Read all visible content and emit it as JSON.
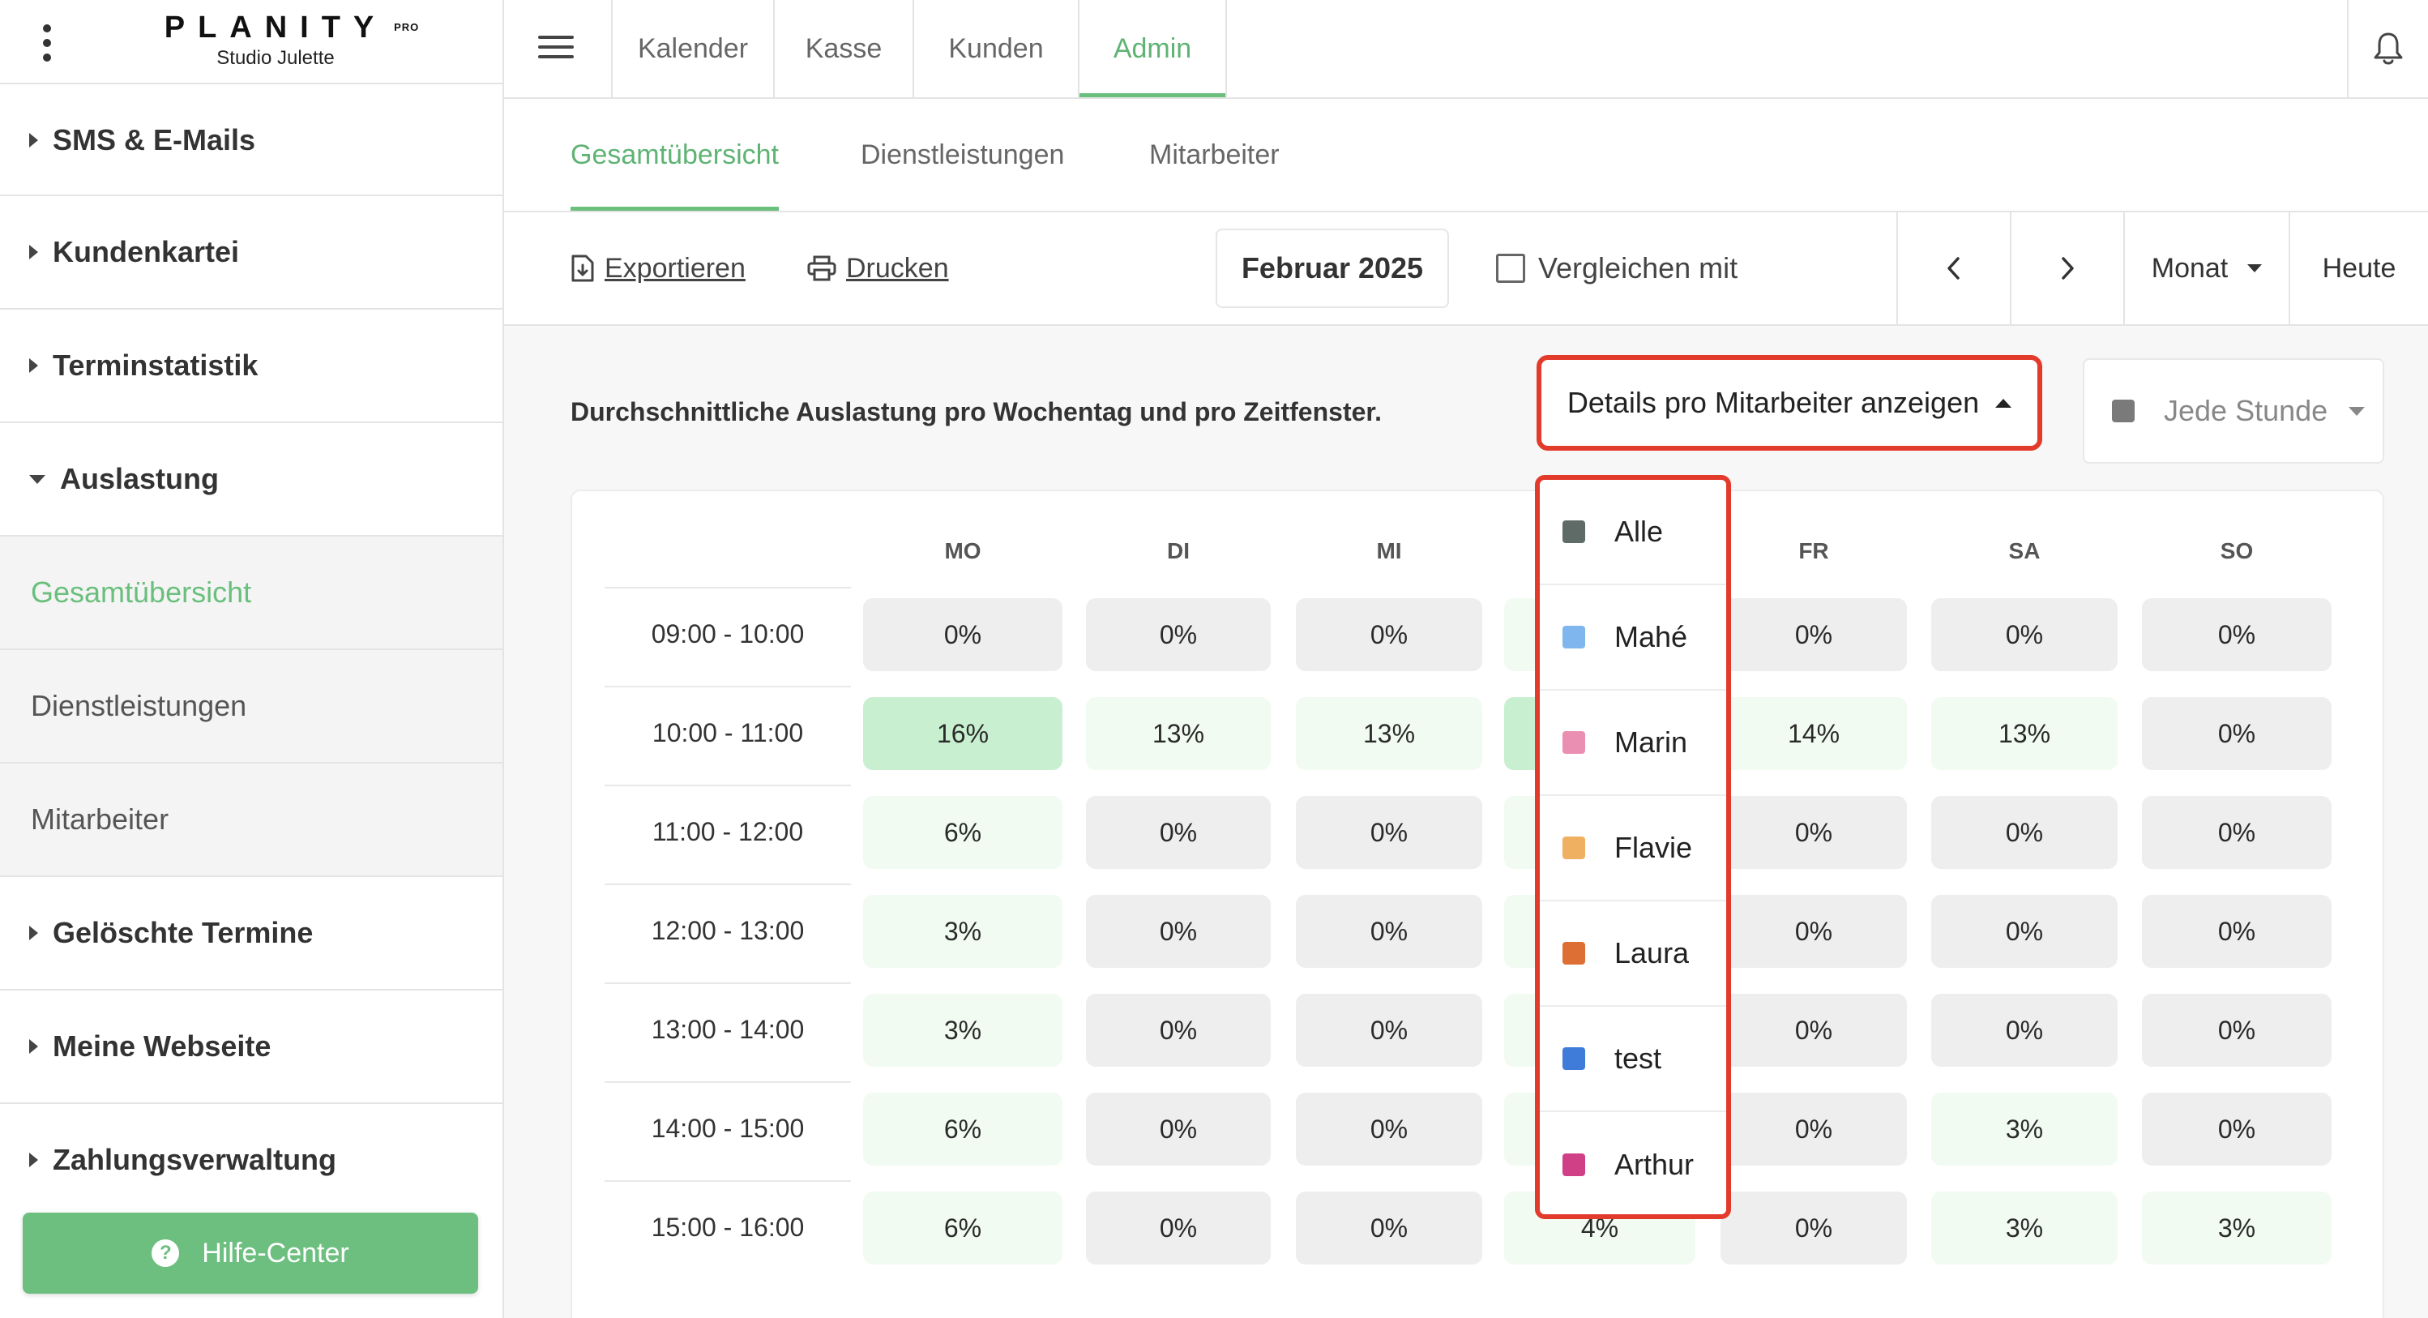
{
  "sidebar": {
    "logo_word": "PLANITY",
    "logo_sup": "PRO",
    "studio": "Studio Julette",
    "items": [
      {
        "label": "SMS & E-Mails"
      },
      {
        "label": "Kundenkartei"
      },
      {
        "label": "Terminstatistik"
      },
      {
        "label": "Auslastung"
      },
      {
        "label": "Gesamtübersicht"
      },
      {
        "label": "Dienstleistungen"
      },
      {
        "label": "Mitarbeiter"
      },
      {
        "label": "Gelöschte Termine"
      },
      {
        "label": "Meine Webseite"
      },
      {
        "label": "Zahlungsverwaltung"
      }
    ],
    "help_label": "Hilfe-Center",
    "help_icon_glyph": "?"
  },
  "topbar": {
    "tabs": [
      {
        "label": "Kalender"
      },
      {
        "label": "Kasse"
      },
      {
        "label": "Kunden"
      },
      {
        "label": "Admin"
      }
    ],
    "active_tab": "Admin"
  },
  "subtabs": {
    "tabs": [
      {
        "label": "Gesamtübersicht"
      },
      {
        "label": "Dienstleistungen"
      },
      {
        "label": "Mitarbeiter"
      }
    ],
    "active_tab": "Gesamtübersicht"
  },
  "toolbar": {
    "export_label": "Exportieren",
    "print_label": "Drucken",
    "month": "Februar 2025",
    "compare_label": "Vergleichen mit",
    "period_label": "Monat",
    "today_label": "Heute"
  },
  "content": {
    "description": "Durchschnittliche Auslastung pro Wochentag und pro Zeitfenster.",
    "details_label": "Details pro Mitarbeiter anzeigen",
    "interval_label": "Jede Stunde",
    "days": [
      "MO",
      "DI",
      "MI",
      "",
      "FR",
      "SA",
      "SO"
    ],
    "rows": [
      {
        "time": "09:00 - 10:00",
        "values": [
          "0%",
          "0%",
          "0%",
          "",
          "0%",
          "0%",
          "0%"
        ]
      },
      {
        "time": "10:00 - 11:00",
        "values": [
          "16%",
          "13%",
          "13%",
          "",
          "14%",
          "13%",
          "0%"
        ]
      },
      {
        "time": "11:00 - 12:00",
        "values": [
          "6%",
          "0%",
          "0%",
          "",
          "0%",
          "0%",
          "0%"
        ]
      },
      {
        "time": "12:00 - 13:00",
        "values": [
          "3%",
          "0%",
          "0%",
          "",
          "0%",
          "0%",
          "0%"
        ]
      },
      {
        "time": "13:00 - 14:00",
        "values": [
          "3%",
          "0%",
          "0%",
          "",
          "0%",
          "0%",
          "0%"
        ]
      },
      {
        "time": "14:00 - 15:00",
        "values": [
          "6%",
          "0%",
          "0%",
          "",
          "0%",
          "3%",
          "0%"
        ]
      },
      {
        "time": "15:00 - 16:00",
        "values": [
          "6%",
          "0%",
          "0%",
          "4%",
          "0%",
          "3%",
          "3%"
        ]
      }
    ],
    "shade_levels": [
      [
        0,
        0,
        0,
        1,
        0,
        0,
        0
      ],
      [
        2,
        1,
        1,
        2,
        1,
        1,
        0
      ],
      [
        1,
        0,
        0,
        1,
        0,
        0,
        0
      ],
      [
        1,
        0,
        0,
        1,
        0,
        0,
        0
      ],
      [
        1,
        0,
        0,
        1,
        0,
        0,
        0
      ],
      [
        1,
        0,
        0,
        1,
        0,
        1,
        0
      ],
      [
        1,
        0,
        0,
        1,
        0,
        1,
        1
      ]
    ]
  },
  "dropdown": {
    "items": [
      {
        "label": "Alle",
        "color": "#5f6b66"
      },
      {
        "label": "Mahé",
        "color": "#7fb6ee"
      },
      {
        "label": "Marin",
        "color": "#ea8fb2"
      },
      {
        "label": "Flavie",
        "color": "#f0b062"
      },
      {
        "label": "Laura",
        "color": "#dd6f35"
      },
      {
        "label": "test",
        "color": "#3f7bd8"
      },
      {
        "label": "Arthur",
        "color": "#d04087"
      }
    ]
  },
  "colors": {
    "accent": "#6abf7d",
    "highlight": "#e33b2b",
    "cell_empty": "#eeeeee",
    "cell_low": "#f1fbf2",
    "cell_high": "#c8efd0"
  }
}
